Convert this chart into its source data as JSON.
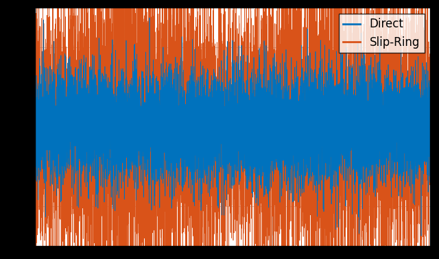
{
  "direct_color": "#0072BD",
  "slip_ring_color": "#D95319",
  "legend_labels": [
    "Direct",
    "Slip-Ring"
  ],
  "background_color": "#ffffff",
  "outer_color": "#000000",
  "grid_color": "#b0b0b0",
  "grid_linewidth": 0.5,
  "linewidth": 0.5,
  "figsize": [
    6.4,
    3.78
  ],
  "dpi": 100,
  "legend_fontsize": 12,
  "n_points": 10000,
  "seed_direct": 42,
  "seed_slip": 7,
  "noise_scale_direct": 0.35,
  "noise_scale_slip": 0.7,
  "ylim": [
    -1.5,
    1.5
  ]
}
